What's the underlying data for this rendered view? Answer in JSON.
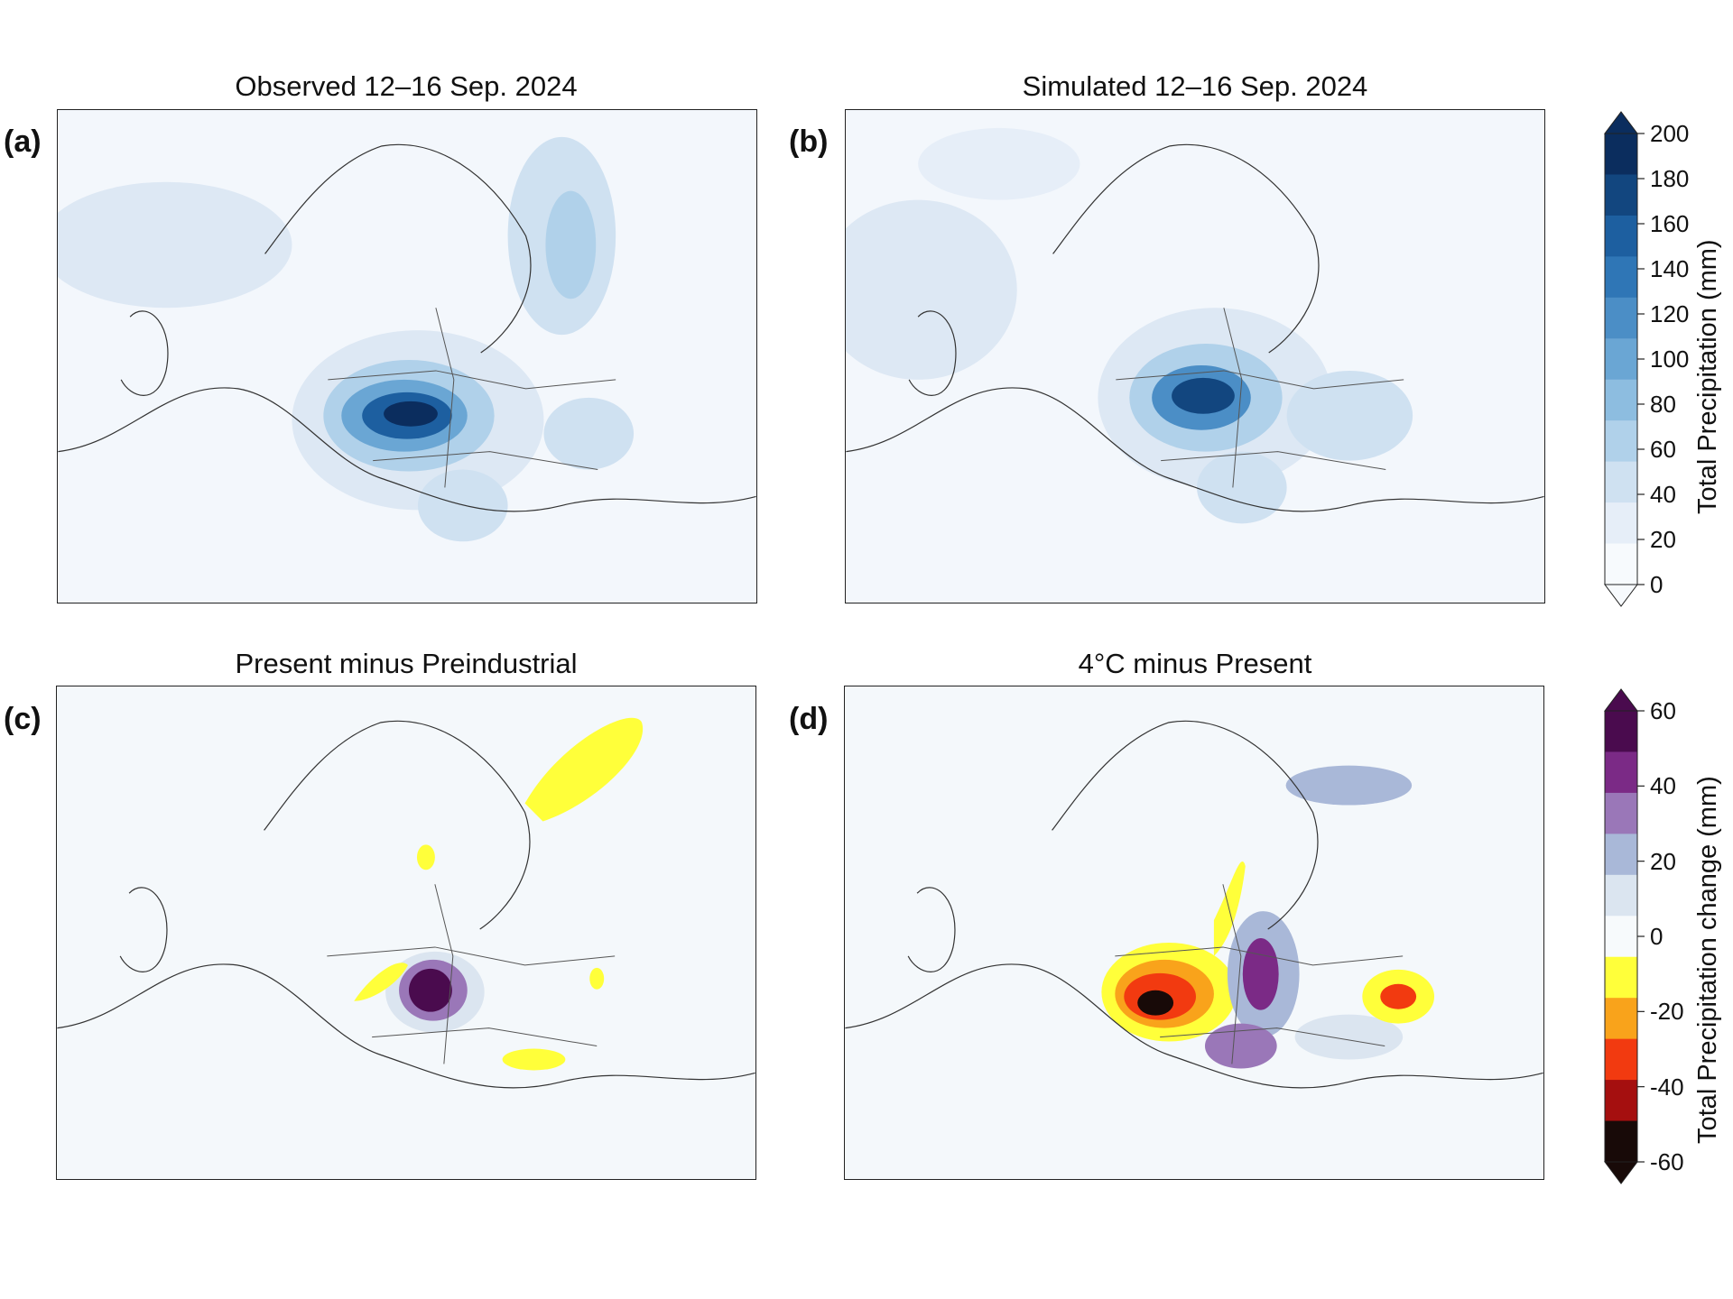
{
  "panels": [
    {
      "letter": "(a)",
      "title": "Observed 12–16 Sep. 2024"
    },
    {
      "letter": "(b)",
      "title": "Simulated 12–16 Sep. 2024"
    },
    {
      "letter": "(c)",
      "title": "Present minus Preindustrial"
    },
    {
      "letter": "(d)",
      "title": "4°C minus Present"
    }
  ],
  "colorbar_top": {
    "label": "Total Precipitation (mm)",
    "ticks": [
      "200",
      "180",
      "160",
      "140",
      "120",
      "100",
      "80",
      "60",
      "40",
      "20",
      "0"
    ],
    "colors": [
      "#0b2d5e",
      "#12467f",
      "#1d5fa0",
      "#2f76b6",
      "#4b8ec6",
      "#6aa6d4",
      "#8dbde0",
      "#b0d1ea",
      "#cfe1f1",
      "#e6eef8",
      "#f7fafd"
    ]
  },
  "colorbar_bottom": {
    "label": "Total Precipitation change (mm)",
    "ticks": [
      "60",
      "40",
      "20",
      "0",
      "-20",
      "-40",
      "-60"
    ],
    "colors": [
      "#4a0b4e",
      "#7b2a86",
      "#9a77b8",
      "#a9b8d8",
      "#dbe5f0",
      "#f7fafc",
      "#ffff3a",
      "#f9a31b",
      "#f23a10",
      "#a50f0f",
      "#180a08"
    ]
  }
}
